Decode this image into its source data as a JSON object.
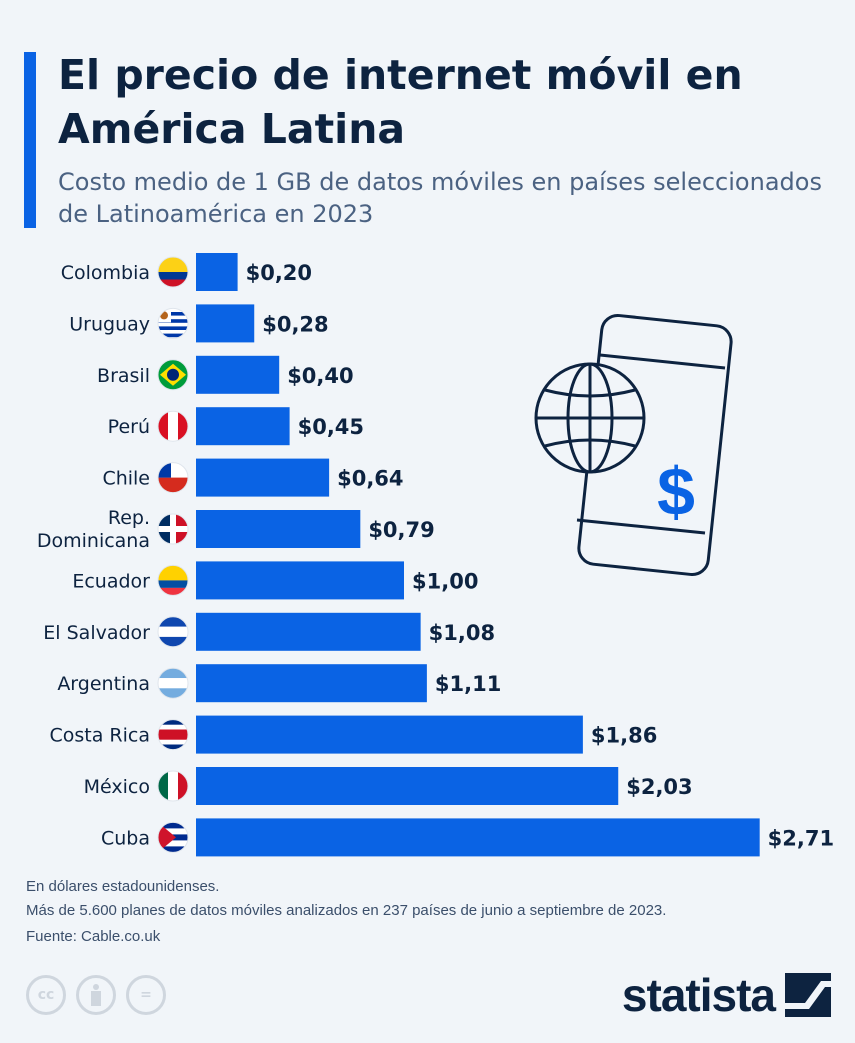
{
  "header": {
    "title": "El precio de internet móvil en América Latina",
    "subtitle": "Costo medio de 1 GB de datos móviles en países seleccionados de Latinoamérica en 2023"
  },
  "colors": {
    "bar": "#0a63e4",
    "title": "#0d2340",
    "background": "#f1f5f9"
  },
  "chart_data": {
    "type": "bar",
    "orientation": "horizontal",
    "categories": [
      "Colombia",
      "Uruguay",
      "Brasil",
      "Perú",
      "Chile",
      "Rep. Dominicana",
      "Ecuador",
      "El Salvador",
      "Argentina",
      "Costa Rica",
      "México",
      "Cuba"
    ],
    "values": [
      0.2,
      0.28,
      0.4,
      0.45,
      0.64,
      0.79,
      1.0,
      1.08,
      1.11,
      1.86,
      2.03,
      2.71
    ],
    "data_labels": [
      "$0,20",
      "$0,28",
      "$0,40",
      "$0,45",
      "$0,64",
      "$0,79",
      "$1,00",
      "$1,08",
      "$1,11",
      "$1,86",
      "$2,03",
      "$2,71"
    ],
    "title": "El precio de internet móvil en América Latina",
    "xlabel": "",
    "ylabel": "",
    "grid": false,
    "legend": "none",
    "icons": [
      "flag-colombia",
      "flag-uruguay",
      "flag-brasil",
      "flag-peru",
      "flag-chile",
      "flag-dominican-republic",
      "flag-ecuador",
      "flag-el-salvador",
      "flag-argentina",
      "flag-costa-rica",
      "flag-mexico",
      "flag-cuba"
    ]
  },
  "footer": {
    "note1": "En dólares estadounidenses.",
    "note2": "Más de 5.600 planes de datos móviles analizados en 237 países de junio a septiembre de 2023.",
    "source": "Fuente: Cable.co.uk",
    "logo": "statista",
    "license_icons": [
      "cc",
      "by",
      "nd"
    ],
    "cc_text": "cc",
    "nd_text": "="
  }
}
